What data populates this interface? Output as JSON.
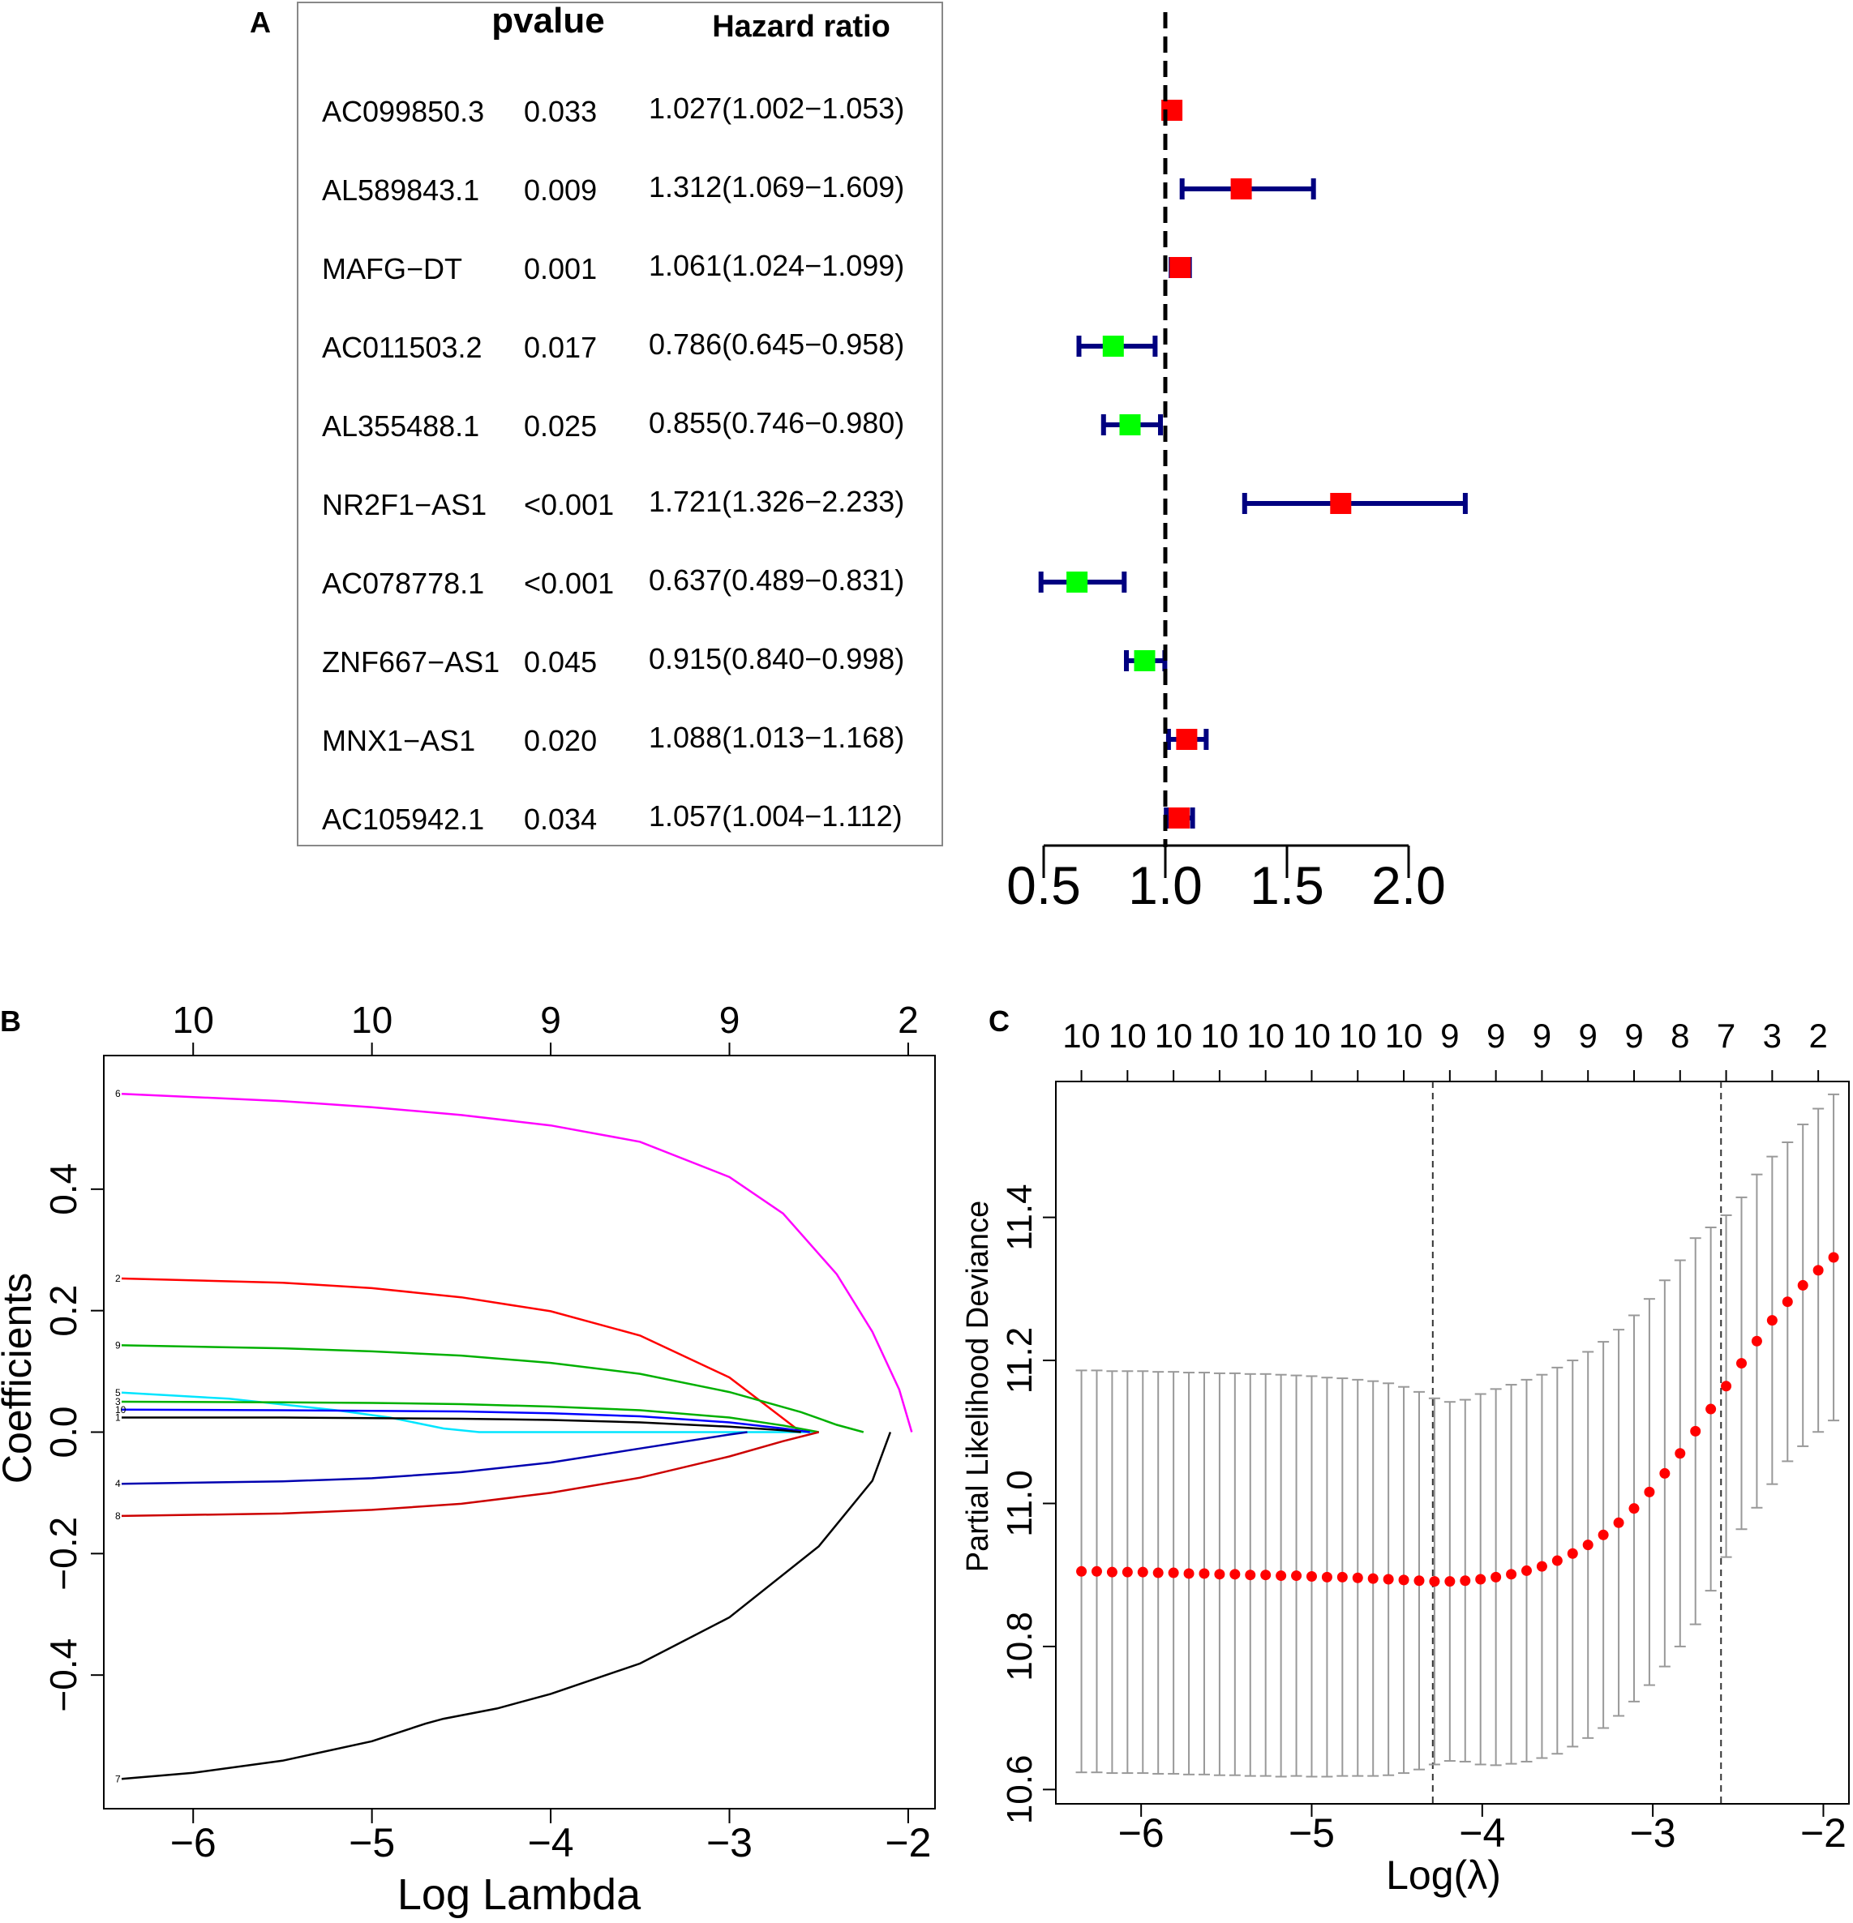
{
  "panels": {
    "a": "A",
    "b": "B",
    "c": "C"
  },
  "chart_data": [
    {
      "type": "forest",
      "panel": "A",
      "headers": {
        "pvalue": "pvalue",
        "hr": "Hazard ratio"
      },
      "rows": [
        {
          "gene": "AC099850.3",
          "pvalue": "0.033",
          "hr_text": "1.027(1.002−1.053)",
          "hr": 1.027,
          "lo": 1.002,
          "hi": 1.053,
          "color": "#ff0000"
        },
        {
          "gene": "AL589843.1",
          "pvalue": "0.009",
          "hr_text": "1.312(1.069−1.609)",
          "hr": 1.312,
          "lo": 1.069,
          "hi": 1.609,
          "color": "#ff0000"
        },
        {
          "gene": "MAFG−DT",
          "pvalue": "0.001",
          "hr_text": "1.061(1.024−1.099)",
          "hr": 1.061,
          "lo": 1.024,
          "hi": 1.099,
          "color": "#ff0000"
        },
        {
          "gene": "AC011503.2",
          "pvalue": "0.017",
          "hr_text": "0.786(0.645−0.958)",
          "hr": 0.786,
          "lo": 0.645,
          "hi": 0.958,
          "color": "#00ff00"
        },
        {
          "gene": "AL355488.1",
          "pvalue": "0.025",
          "hr_text": "0.855(0.746−0.980)",
          "hr": 0.855,
          "lo": 0.746,
          "hi": 0.98,
          "color": "#00ff00"
        },
        {
          "gene": "NR2F1−AS1",
          "pvalue": "<0.001",
          "hr_text": "1.721(1.326−2.233)",
          "hr": 1.721,
          "lo": 1.326,
          "hi": 2.233,
          "color": "#ff0000"
        },
        {
          "gene": "AC078778.1",
          "pvalue": "<0.001",
          "hr_text": "0.637(0.489−0.831)",
          "hr": 0.637,
          "lo": 0.489,
          "hi": 0.831,
          "color": "#00ff00"
        },
        {
          "gene": "ZNF667−AS1",
          "pvalue": "0.045",
          "hr_text": "0.915(0.840−0.998)",
          "hr": 0.915,
          "lo": 0.84,
          "hi": 0.998,
          "color": "#00ff00"
        },
        {
          "gene": "MNX1−AS1",
          "pvalue": "0.020",
          "hr_text": "1.088(1.013−1.168)",
          "hr": 1.088,
          "lo": 1.013,
          "hi": 1.168,
          "color": "#ff0000"
        },
        {
          "gene": "AC105942.1",
          "pvalue": "0.034",
          "hr_text": "1.057(1.004−1.112)",
          "hr": 1.057,
          "lo": 1.004,
          "hi": 1.112,
          "color": "#ff0000"
        }
      ],
      "xlim": [
        0.5,
        2.0
      ],
      "xticks": [
        0.5,
        1.0,
        1.5,
        2.0
      ],
      "xtick_labels": [
        "0.5",
        "1.0",
        "1.5",
        "2.0"
      ],
      "reference_line": 1.0,
      "ci_color": "#000080"
    },
    {
      "type": "line",
      "panel": "B",
      "xlabel": "Log Lambda",
      "ylabel": "Coefficients",
      "xlim": [
        -6.5,
        -1.85
      ],
      "ylim": [
        -0.62,
        0.62
      ],
      "xticks": [
        -6,
        -5,
        -4,
        -3,
        -2
      ],
      "xtick_labels": [
        "−6",
        "−5",
        "−4",
        "−3",
        "−2"
      ],
      "yticks": [
        -0.4,
        -0.2,
        0.0,
        0.2,
        0.4
      ],
      "ytick_labels": [
        "−0.4",
        "−0.2",
        "0.0",
        "0.2",
        "0.4"
      ],
      "top_ticks": [
        -6,
        -5,
        -4,
        -3,
        -2
      ],
      "top_labels": [
        "10",
        "10",
        "9",
        "9",
        "2"
      ],
      "series": [
        {
          "name": "6",
          "color": "#ff00ff",
          "x": [
            -6.4,
            -5.5,
            -5.0,
            -4.5,
            -4.0,
            -3.5,
            -3.0,
            -2.7,
            -2.4,
            -2.2,
            -2.05,
            -1.98
          ],
          "y": [
            0.557,
            0.545,
            0.535,
            0.522,
            0.505,
            0.478,
            0.42,
            0.36,
            0.26,
            0.165,
            0.07,
            0.0
          ]
        },
        {
          "name": "2",
          "color": "#ff0000",
          "x": [
            -6.4,
            -5.5,
            -5.0,
            -4.5,
            -4.0,
            -3.5,
            -3.0,
            -2.8,
            -2.6
          ],
          "y": [
            0.253,
            0.246,
            0.237,
            0.222,
            0.199,
            0.159,
            0.09,
            0.045,
            0.0
          ]
        },
        {
          "name": "9",
          "color": "#00b000",
          "x": [
            -6.4,
            -5.5,
            -5.0,
            -4.5,
            -4.0,
            -3.5,
            -3.0,
            -2.6,
            -2.4,
            -2.25
          ],
          "y": [
            0.143,
            0.138,
            0.133,
            0.126,
            0.114,
            0.096,
            0.066,
            0.033,
            0.012,
            0.0
          ]
        },
        {
          "name": "5",
          "color": "#00e5ff",
          "x": [
            -6.4,
            -5.8,
            -5.2,
            -4.9,
            -4.6,
            -4.4,
            -4.0,
            -3.5,
            -3.0,
            -2.5
          ],
          "y": [
            0.065,
            0.055,
            0.036,
            0.024,
            0.006,
            0.0,
            0.0,
            0.0,
            0.0,
            0.0
          ]
        },
        {
          "name": "3",
          "color": "#00b000",
          "x": [
            -6.4,
            -5.5,
            -5.0,
            -4.5,
            -4.0,
            -3.5,
            -3.0,
            -2.7,
            -2.5
          ],
          "y": [
            0.05,
            0.049,
            0.048,
            0.046,
            0.042,
            0.036,
            0.024,
            0.011,
            0.0
          ]
        },
        {
          "name": "10",
          "color": "#0000ff",
          "x": [
            -6.4,
            -5.5,
            -5.0,
            -4.5,
            -4.0,
            -3.5,
            -3.0,
            -2.7,
            -2.55
          ],
          "y": [
            0.037,
            0.036,
            0.035,
            0.034,
            0.031,
            0.026,
            0.016,
            0.006,
            0.0
          ]
        },
        {
          "name": "1",
          "color": "#000000",
          "x": [
            -6.4,
            -5.5,
            -5.0,
            -4.5,
            -4.0,
            -3.5,
            -3.0,
            -2.7,
            -2.6
          ],
          "y": [
            0.024,
            0.024,
            0.023,
            0.022,
            0.02,
            0.016,
            0.009,
            0.003,
            0.0
          ]
        },
        {
          "name": "4",
          "color": "#0000b0",
          "x": [
            -6.4,
            -5.5,
            -5.0,
            -4.5,
            -4.0,
            -3.5,
            -3.0,
            -2.9
          ],
          "y": [
            -0.085,
            -0.081,
            -0.076,
            -0.066,
            -0.05,
            -0.027,
            -0.004,
            0.0
          ]
        },
        {
          "name": "8",
          "color": "#cc0000",
          "x": [
            -6.4,
            -5.5,
            -5.0,
            -4.5,
            -4.0,
            -3.5,
            -3.0,
            -2.7,
            -2.5
          ],
          "y": [
            -0.138,
            -0.134,
            -0.128,
            -0.118,
            -0.1,
            -0.075,
            -0.04,
            -0.015,
            0.0
          ]
        },
        {
          "name": "7",
          "color": "#000000",
          "x": [
            -6.4,
            -6.0,
            -5.5,
            -5.0,
            -4.7,
            -4.6,
            -4.3,
            -4.0,
            -3.5,
            -3.0,
            -2.5,
            -2.2,
            -2.1
          ],
          "y": [
            -0.571,
            -0.561,
            -0.541,
            -0.509,
            -0.48,
            -0.472,
            -0.455,
            -0.431,
            -0.381,
            -0.305,
            -0.188,
            -0.08,
            -0.0
          ]
        }
      ]
    },
    {
      "type": "scatter",
      "panel": "C",
      "xlabel": "Log(λ)",
      "ylabel": "Partial Likelihood Deviance",
      "xlim": [
        -6.5,
        -1.85
      ],
      "ylim": [
        10.58,
        11.59
      ],
      "xticks": [
        -6,
        -5,
        -4,
        -3,
        -2
      ],
      "xtick_labels": [
        "−6",
        "−5",
        "−4",
        "−3",
        "−2"
      ],
      "yticks": [
        10.6,
        10.8,
        11.0,
        11.2,
        11.4
      ],
      "ytick_labels": [
        "10.6",
        "10.8",
        "11.0",
        "11.2",
        "11.4"
      ],
      "top_ticks": [
        -6.35,
        -6.08,
        -5.81,
        -5.54,
        -5.27,
        -5.0,
        -4.73,
        -4.46,
        -4.19,
        -3.92,
        -3.65,
        -3.38,
        -3.11,
        -2.84,
        -2.57,
        -2.3,
        -2.03
      ],
      "top_labels": [
        "10",
        "10",
        "10",
        "10",
        "10",
        "10",
        "10",
        "10",
        "9",
        "9",
        "9",
        "9",
        "9",
        "8",
        "7",
        "3",
        "2"
      ],
      "vlines": [
        -4.29,
        -2.6
      ],
      "lambda_x": [
        -6.35,
        -6.26,
        -6.17,
        -6.08,
        -5.99,
        -5.9,
        -5.81,
        -5.72,
        -5.63,
        -5.54,
        -5.45,
        -5.36,
        -5.27,
        -5.18,
        -5.09,
        -5.0,
        -4.91,
        -4.82,
        -4.73,
        -4.64,
        -4.55,
        -4.46,
        -4.37,
        -4.28,
        -4.19,
        -4.1,
        -4.01,
        -3.92,
        -3.83,
        -3.74,
        -3.65,
        -3.56,
        -3.47,
        -3.38,
        -3.29,
        -3.2,
        -3.11,
        -3.02,
        -2.93,
        -2.84,
        -2.75,
        -2.66,
        -2.57,
        -2.48,
        -2.39,
        -2.3,
        -2.21,
        -2.12,
        -2.03,
        -1.94
      ],
      "deviance": [
        10.905,
        10.905,
        10.904,
        10.904,
        10.904,
        10.903,
        10.903,
        10.902,
        10.902,
        10.901,
        10.901,
        10.9,
        10.9,
        10.899,
        10.899,
        10.898,
        10.897,
        10.897,
        10.896,
        10.895,
        10.894,
        10.893,
        10.892,
        10.891,
        10.891,
        10.892,
        10.894,
        10.897,
        10.901,
        10.906,
        10.912,
        10.92,
        10.93,
        10.942,
        10.956,
        10.973,
        10.993,
        11.016,
        11.042,
        11.07,
        11.101,
        11.132,
        11.164,
        11.196,
        11.227,
        11.256,
        11.282,
        11.305,
        11.326,
        11.344
      ],
      "ci_halfwidth": [
        0.281,
        0.281,
        0.281,
        0.281,
        0.281,
        0.281,
        0.281,
        0.281,
        0.281,
        0.281,
        0.281,
        0.281,
        0.281,
        0.281,
        0.28,
        0.28,
        0.279,
        0.278,
        0.277,
        0.276,
        0.274,
        0.27,
        0.264,
        0.256,
        0.251,
        0.253,
        0.259,
        0.263,
        0.265,
        0.267,
        0.268,
        0.27,
        0.27,
        0.27,
        0.27,
        0.27,
        0.27,
        0.27,
        0.27,
        0.27,
        0.27,
        0.254,
        0.239,
        0.232,
        0.233,
        0.229,
        0.223,
        0.225,
        0.226,
        0.228
      ],
      "point_color": "#ff0000",
      "errorbar_color": "#999999"
    }
  ]
}
